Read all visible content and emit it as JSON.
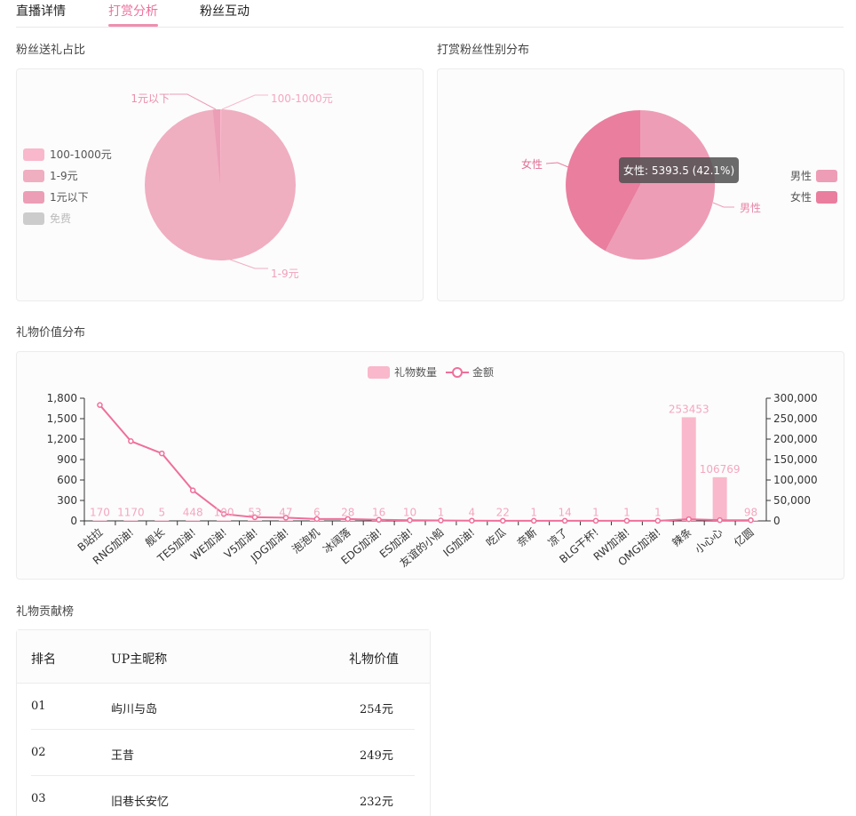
{
  "tabs": [
    "直播详情",
    "打赏分析",
    "粉丝互动"
  ],
  "active_tab": 1,
  "sections": {
    "gift_share": "粉丝送礼占比",
    "gender": "打赏粉丝性别分布",
    "gift_value": "礼物价值分布",
    "ranking": "礼物贡献榜"
  },
  "gift_share_chart": {
    "legend": [
      {
        "label": "100-1000元",
        "color": "#f9b8cb"
      },
      {
        "label": "1-9元",
        "color": "#f0aec1"
      },
      {
        "label": "1元以下",
        "color": "#ec9eb6"
      },
      {
        "label": "免费",
        "color": "#cccccc",
        "muted": true
      }
    ],
    "callouts": {
      "under1": "1元以下",
      "r100": "100-1000元",
      "r1_9": "1-9元"
    }
  },
  "gender_chart": {
    "legend": [
      {
        "label": "男性",
        "color": "#ee9db6"
      },
      {
        "label": "女性",
        "color": "#e97e9f"
      }
    ],
    "callouts": {
      "male": "男性",
      "female": "女性"
    },
    "tooltip": "女性: 5393.5 (42.1%)"
  },
  "chart_data": [
    {
      "type": "pie",
      "title": "粉丝送礼占比",
      "labels": [
        "100-1000元",
        "1-9元",
        "1元以下",
        "免费"
      ],
      "values": [
        0.3,
        98.3,
        1.4,
        0
      ],
      "colors": [
        "#f9b8cb",
        "#f0aec1",
        "#ec9eb6",
        "#cccccc"
      ]
    },
    {
      "type": "pie",
      "title": "打赏粉丝性别分布",
      "labels": [
        "男性",
        "女性"
      ],
      "values": [
        57.9,
        42.1
      ],
      "colors": [
        "#ee9db6",
        "#e97e9f"
      ]
    },
    {
      "type": "bar",
      "title": "礼物价值分布",
      "legend": [
        "礼物数量",
        "金额"
      ],
      "categories": [
        "B站拉",
        "RNG加油!",
        "舰长",
        "TES加油!",
        "WE加油!",
        "V5加油!",
        "JDG加油!",
        "泡泡机",
        "冰阔落",
        "EDG加油!",
        "ES加油!",
        "友谊的小船",
        "IG加油!",
        "吃瓜",
        "奈斯",
        "凉了",
        "BLG干杯!",
        "RW加油!",
        "OMG加油!",
        "辣条",
        "小心心",
        "亿圆"
      ],
      "series": [
        {
          "name": "礼物数量",
          "type": "bar",
          "axis": "right",
          "values": [
            170,
            1170,
            5,
            448,
            100,
            53,
            47,
            6,
            28,
            16,
            10,
            1,
            4,
            22,
            1,
            14,
            1,
            1,
            1,
            253453,
            106769,
            98
          ]
        },
        {
          "name": "金额",
          "type": "line",
          "axis": "left",
          "values": [
            1700,
            1170,
            990,
            448,
            100,
            53,
            47,
            28,
            28,
            16,
            10,
            6,
            4,
            2.2,
            1,
            1.4,
            1,
            1,
            1,
            25,
            10.7,
            9.8
          ]
        }
      ],
      "y_left": {
        "ticks": [
          "0",
          "300",
          "600",
          "900",
          "1,200",
          "1,500",
          "1,800"
        ],
        "max": 1800
      },
      "y_right": {
        "ticks": [
          "0",
          "50,000",
          "100,000",
          "150,000",
          "200,000",
          "250,000",
          "300,000"
        ],
        "max": 300000
      }
    }
  ],
  "ranking": {
    "headers": {
      "rank": "排名",
      "name": "UP主昵称",
      "value": "礼物价值"
    },
    "rows": [
      {
        "rank": "01",
        "name": "屿川与岛",
        "value": "254元"
      },
      {
        "rank": "02",
        "name": "王昔",
        "value": "249元"
      },
      {
        "rank": "03",
        "name": "旧巷长安忆",
        "value": "232元"
      }
    ]
  }
}
